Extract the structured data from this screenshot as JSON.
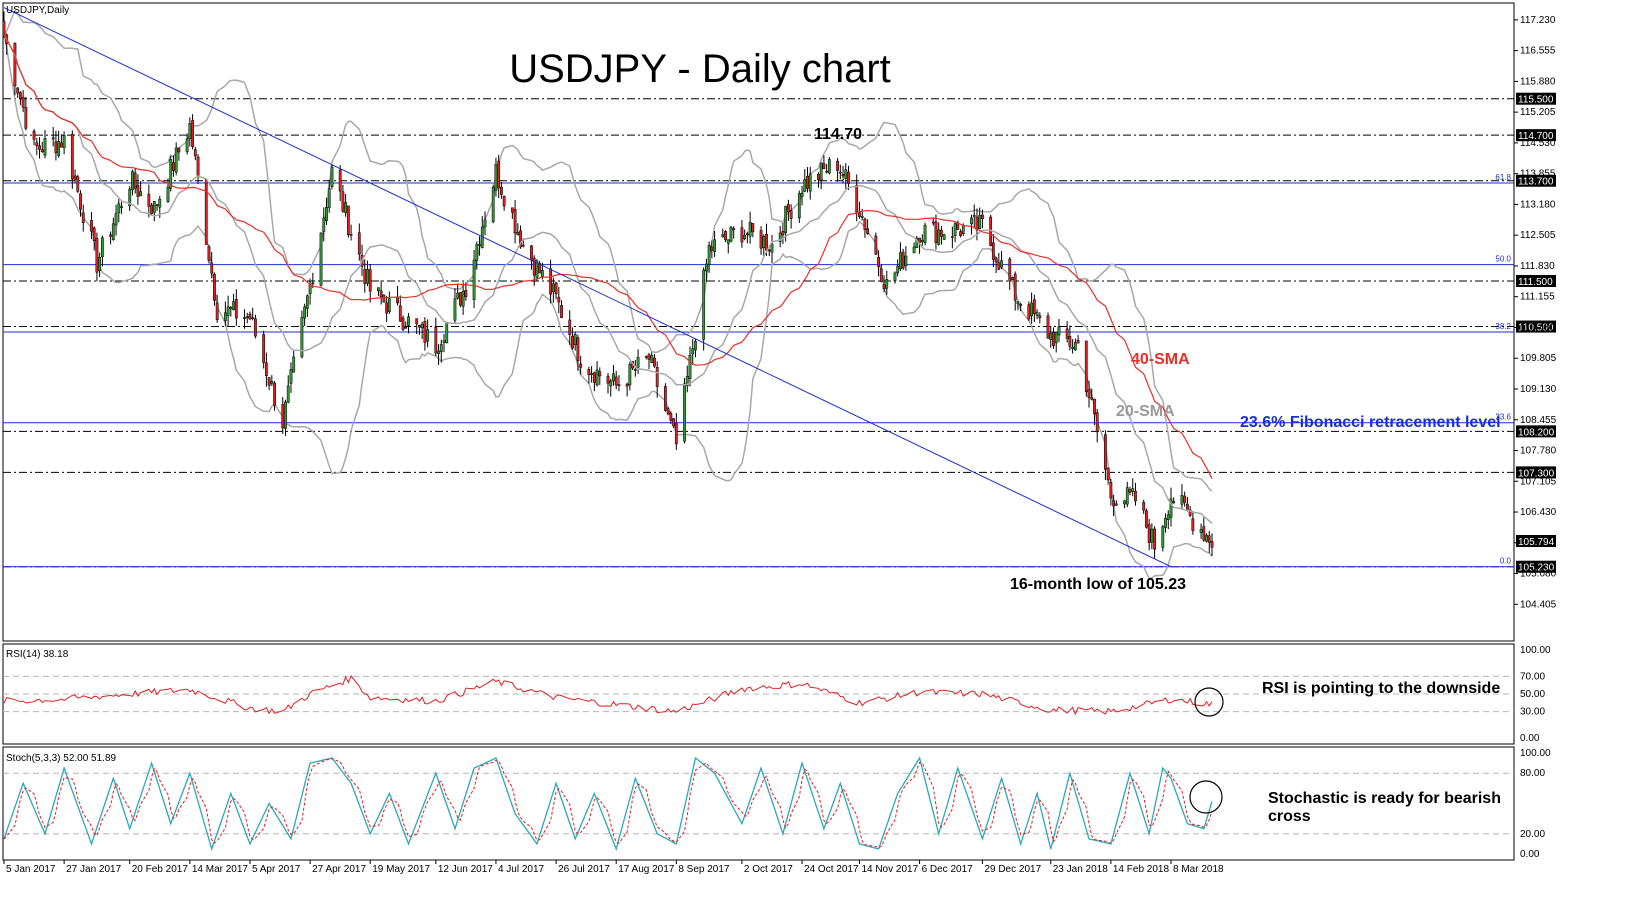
{
  "chart_data": {
    "type": "candlestick",
    "symbol_label": "USDJPY,Daily",
    "title": "USDJPY - Daily chart",
    "price_axis": {
      "range": [
        103.6,
        117.6
      ],
      "ticks": [
        "117.230",
        "116.555",
        "115.880",
        "115.205",
        "114.530",
        "113.855",
        "113.180",
        "112.505",
        "111.830",
        "111.155",
        "110.480",
        "109.805",
        "109.130",
        "108.455",
        "107.780",
        "107.105",
        "106.430",
        "105.755",
        "105.080",
        "104.405"
      ]
    },
    "date_axis": {
      "labels": [
        "5 Jan 2017",
        "27 Jan 2017",
        "20 Feb 2017",
        "14 Mar 2017",
        "5 Apr 2017",
        "27 Apr 2017",
        "19 May 2017",
        "12 Jun 2017",
        "4 Jul 2017",
        "26 Jul 2017",
        "17 Aug 2017",
        "8 Sep 2017",
        "2 Oct 2017",
        "24 Oct 2017",
        "14 Nov 2017",
        "6 Dec 2017",
        "29 Dec 2017",
        "23 Jan 2018",
        "14 Feb 2018",
        "8 Mar 2018"
      ]
    },
    "horizontal_levels": [
      {
        "value": 115.5,
        "label": "115.500",
        "style": "dash-dot",
        "color": "#000000"
      },
      {
        "value": 114.7,
        "label": "114.700",
        "style": "dash-dot",
        "color": "#000000"
      },
      {
        "value": 113.7,
        "label": "113.700",
        "style": "dash-dot",
        "color": "#000000"
      },
      {
        "value": 111.5,
        "label": "111.500",
        "style": "dash-dot",
        "color": "#000000"
      },
      {
        "value": 110.5,
        "label": "110.500",
        "style": "dash-dot",
        "color": "#000000"
      },
      {
        "value": 108.2,
        "label": "108.200",
        "style": "dash-dot",
        "color": "#000000"
      },
      {
        "value": 107.3,
        "label": "107.300",
        "style": "dash-dot",
        "color": "#000000"
      },
      {
        "value": 105.23,
        "label": "105.230",
        "style": "dash-dot",
        "color": "#000000"
      }
    ],
    "current_price": {
      "value": 105.794,
      "label": "105.794"
    },
    "fibonacci_levels": [
      {
        "ratio_label": "61.8",
        "value": 113.65
      },
      {
        "ratio_label": "50.0",
        "value": 111.86
      },
      {
        "ratio_label": "38.2",
        "value": 110.38
      },
      {
        "ratio_label": "23.6",
        "value": 108.39
      },
      {
        "ratio_label": "0.0",
        "value": 105.23
      }
    ],
    "trendline": {
      "start": {
        "date": "5 Jan 2017",
        "value": 117.5
      },
      "end": {
        "date": "8 Mar 2018",
        "value": 105.23
      }
    },
    "annotations": {
      "high": "114.70",
      "low": "16-month low of 105.23",
      "sma40": "40-SMA",
      "sma20": "20-SMA",
      "fib": "23.6% Fibonacci retracement level"
    },
    "price_path": [
      [
        "5 Jan 2017",
        116.9
      ],
      [
        "16 Jan 2017",
        114.4
      ],
      [
        "27 Jan 2017",
        114.6
      ],
      [
        "8 Feb 2017",
        111.9
      ],
      [
        "20 Feb 2017",
        113.7
      ],
      [
        "1 Mar 2017",
        113.1
      ],
      [
        "14 Mar 2017",
        114.9
      ],
      [
        "24 Mar 2017",
        110.9
      ],
      [
        "5 Apr 2017",
        110.7
      ],
      [
        "17 Apr 2017",
        108.4
      ],
      [
        "27 Apr 2017",
        111.4
      ],
      [
        "5 May 2017",
        113.9
      ],
      [
        "19 May 2017",
        111.3
      ],
      [
        "2 Jun 2017",
        110.6
      ],
      [
        "12 Jun 2017",
        110.1
      ],
      [
        "23 Jun 2017",
        111.4
      ],
      [
        "4 Jul 2017",
        113.9
      ],
      [
        "14 Jul 2017",
        112.3
      ],
      [
        "26 Jul 2017",
        111.1
      ],
      [
        "5 Aug 2017",
        109.7
      ],
      [
        "17 Aug 2017",
        109.2
      ],
      [
        "29 Aug 2017",
        109.8
      ],
      [
        "8 Sep 2017",
        107.9
      ],
      [
        "20 Sep 2017",
        112.2
      ],
      [
        "2 Oct 2017",
        112.6
      ],
      [
        "13 Oct 2017",
        112.3
      ],
      [
        "24 Oct 2017",
        113.6
      ],
      [
        "6 Nov 2017",
        114.1
      ],
      [
        "14 Nov 2017",
        113.1
      ],
      [
        "24 Nov 2017",
        111.4
      ],
      [
        "6 Dec 2017",
        112.6
      ],
      [
        "15 Dec 2017",
        112.6
      ],
      [
        "29 Dec 2017",
        112.7
      ],
      [
        "10 Jan 2018",
        111.2
      ],
      [
        "23 Jan 2018",
        110.3
      ],
      [
        "2 Feb 2018",
        110.1
      ],
      [
        "14 Feb 2018",
        106.8
      ],
      [
        "23 Feb 2018",
        106.7
      ],
      [
        "2 Mar 2018",
        105.7
      ],
      [
        "8 Mar 2018",
        106.8
      ],
      [
        "23 Mar 2018",
        105.8
      ]
    ],
    "rsi": {
      "label": "RSI(14) 38.18",
      "last": 38.18,
      "ticks": [
        "100.00",
        "70.00",
        "50.00",
        "30.00",
        "0.00"
      ],
      "note": "RSI is pointing to the downside",
      "path": [
        [
          "5 Jan 2017",
          42
        ],
        [
          "27 Jan 2017",
          44
        ],
        [
          "20 Feb 2017",
          50
        ],
        [
          "14 Mar 2017",
          55
        ],
        [
          "5 Apr 2017",
          34
        ],
        [
          "17 Apr 2017",
          30
        ],
        [
          "27 Apr 2017",
          50
        ],
        [
          "12 May 2017",
          68
        ],
        [
          "19 May 2017",
          46
        ],
        [
          "12 Jun 2017",
          42
        ],
        [
          "4 Jul 2017",
          64
        ],
        [
          "26 Jul 2017",
          46
        ],
        [
          "17 Aug 2017",
          38
        ],
        [
          "8 Sep 2017",
          30
        ],
        [
          "2 Oct 2017",
          56
        ],
        [
          "24 Oct 2017",
          62
        ],
        [
          "14 Nov 2017",
          40
        ],
        [
          "6 Dec 2017",
          52
        ],
        [
          "29 Dec 2017",
          50
        ],
        [
          "23 Jan 2018",
          32
        ],
        [
          "14 Feb 2018",
          30
        ],
        [
          "8 Mar 2018",
          44
        ],
        [
          "23 Mar 2018",
          38.18
        ]
      ]
    },
    "stochastic": {
      "label": "Stoch(5,3,3) 52.00 51.89",
      "main_last": 52.0,
      "signal_last": 51.89,
      "ticks": [
        "100.00",
        "80.00",
        "20.00",
        "0.00"
      ],
      "note_line1": "Stochastic is ready for bearish",
      "note_line2": "cross",
      "main_path": [
        [
          "5 Jan 2017",
          15
        ],
        [
          "12 Jan 2017",
          70
        ],
        [
          "20 Jan 2017",
          20
        ],
        [
          "27 Jan 2017",
          85
        ],
        [
          "6 Feb 2017",
          10
        ],
        [
          "14 Feb 2017",
          75
        ],
        [
          "20 Feb 2017",
          25
        ],
        [
          "28 Feb 2017",
          90
        ],
        [
          "7 Mar 2017",
          30
        ],
        [
          "14 Mar 2017",
          80
        ],
        [
          "22 Mar 2017",
          5
        ],
        [
          "29 Mar 2017",
          60
        ],
        [
          "5 Apr 2017",
          10
        ],
        [
          "12 Apr 2017",
          50
        ],
        [
          "20 Apr 2017",
          15
        ],
        [
          "27 Apr 2017",
          90
        ],
        [
          "5 May 2017",
          95
        ],
        [
          "12 May 2017",
          70
        ],
        [
          "19 May 2017",
          20
        ],
        [
          "26 May 2017",
          60
        ],
        [
          "2 Jun 2017",
          10
        ],
        [
          "12 Jun 2017",
          80
        ],
        [
          "19 Jun 2017",
          25
        ],
        [
          "26 Jun 2017",
          85
        ],
        [
          "4 Jul 2017",
          95
        ],
        [
          "11 Jul 2017",
          40
        ],
        [
          "19 Jul 2017",
          10
        ],
        [
          "26 Jul 2017",
          70
        ],
        [
          "2 Aug 2017",
          15
        ],
        [
          "9 Aug 2017",
          60
        ],
        [
          "17 Aug 2017",
          5
        ],
        [
          "24 Aug 2017",
          75
        ],
        [
          "1 Sep 2017",
          20
        ],
        [
          "8 Sep 2017",
          10
        ],
        [
          "15 Sep 2017",
          95
        ],
        [
          "22 Sep 2017",
          80
        ],
        [
          "2 Oct 2017",
          30
        ],
        [
          "9 Oct 2017",
          85
        ],
        [
          "17 Oct 2017",
          20
        ],
        [
          "24 Oct 2017",
          90
        ],
        [
          "1 Nov 2017",
          25
        ],
        [
          "7 Nov 2017",
          70
        ],
        [
          "14 Nov 2017",
          10
        ],
        [
          "21 Nov 2017",
          5
        ],
        [
          "28 Nov 2017",
          60
        ],
        [
          "6 Dec 2017",
          95
        ],
        [
          "13 Dec 2017",
          20
        ],
        [
          "20 Dec 2017",
          85
        ],
        [
          "29 Dec 2017",
          15
        ],
        [
          "5 Jan 2018",
          75
        ],
        [
          "12 Jan 2018",
          10
        ],
        [
          "18 Jan 2018",
          60
        ],
        [
          "23 Jan 2018",
          5
        ],
        [
          "30 Jan 2018",
          80
        ],
        [
          "6 Feb 2018",
          15
        ],
        [
          "14 Feb 2018",
          10
        ],
        [
          "21 Feb 2018",
          80
        ],
        [
          "28 Feb 2018",
          20
        ],
        [
          "5 Mar 2018",
          85
        ],
        [
          "8 Mar 2018",
          75
        ],
        [
          "14 Mar 2018",
          30
        ],
        [
          "20 Mar 2018",
          25
        ],
        [
          "23 Mar 2018",
          52.0
        ]
      ]
    }
  }
}
